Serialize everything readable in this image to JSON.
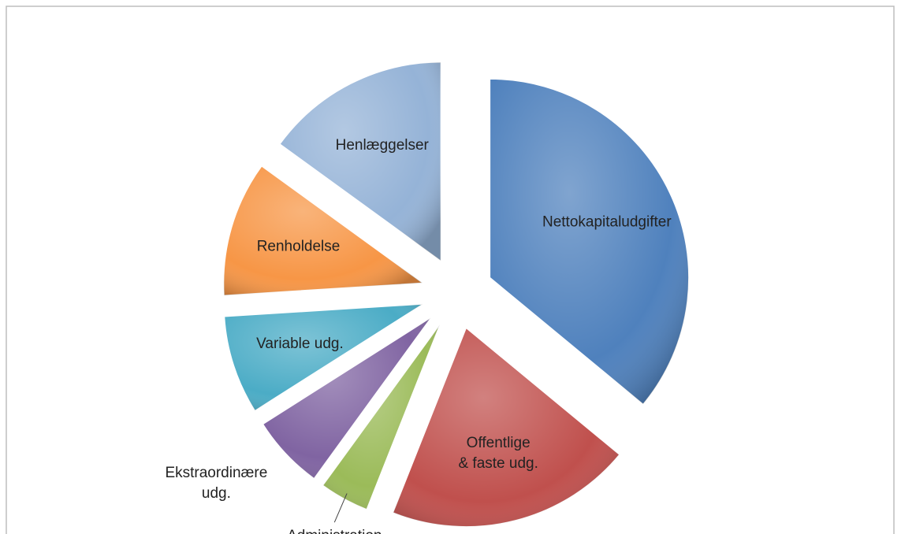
{
  "chart_data": {
    "type": "pie",
    "categories": [
      "Nettokapitaludgifter",
      "Offentlige & faste udg.",
      "Administration",
      "Ekstraordinære udg.",
      "Variable udg.",
      "Renholdelse",
      "Henlæggelser"
    ],
    "values": [
      36,
      20,
      4,
      6,
      8,
      11,
      15
    ],
    "colors": [
      "#4f81bd",
      "#c0504d",
      "#9bbb59",
      "#8064a2",
      "#4bacc6",
      "#f79646",
      "#95b3d7"
    ],
    "legend": false
  }
}
